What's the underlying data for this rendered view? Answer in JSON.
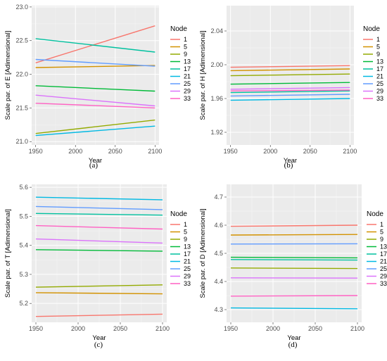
{
  "legend": {
    "title": "Node",
    "nodes": [
      "1",
      "5",
      "9",
      "13",
      "17",
      "21",
      "25",
      "29",
      "33"
    ],
    "colors": [
      "#F8766D",
      "#D39200",
      "#93AA00",
      "#00BA38",
      "#00C19F",
      "#00B9E3",
      "#619CFF",
      "#DB72FB",
      "#FF61C3"
    ]
  },
  "chart_data": [
    {
      "type": "line",
      "panel": "(a)",
      "caption": "(a)",
      "xlabel": "Year",
      "ylabel": "Scale par. of E [Adimensional]",
      "xlim": [
        1945,
        2105
      ],
      "ylim": [
        20.95,
        23.02
      ],
      "xticks": [
        1950,
        2000,
        2050,
        2100
      ],
      "yticks": [
        21.0,
        21.5,
        22.0,
        22.5,
        23.0
      ],
      "ytick_labels": [
        "21.0",
        "21.5",
        "22.0",
        "22.5",
        "23.0"
      ],
      "grid": true,
      "legend_position": "right",
      "x": [
        1950,
        2100
      ],
      "series": [
        {
          "name": "1",
          "values": [
            22.17,
            22.72
          ]
        },
        {
          "name": "5",
          "values": [
            22.1,
            22.13
          ]
        },
        {
          "name": "9",
          "values": [
            21.12,
            21.32
          ]
        },
        {
          "name": "13",
          "values": [
            21.83,
            21.75
          ]
        },
        {
          "name": "17",
          "values": [
            22.53,
            22.33
          ]
        },
        {
          "name": "21",
          "values": [
            21.09,
            21.23
          ]
        },
        {
          "name": "25",
          "values": [
            22.22,
            22.12
          ]
        },
        {
          "name": "29",
          "values": [
            21.69,
            21.53
          ]
        },
        {
          "name": "33",
          "values": [
            21.57,
            21.5
          ]
        }
      ]
    },
    {
      "type": "line",
      "panel": "(b)",
      "caption": "(b)",
      "xlabel": "Year",
      "ylabel": "Scale par. of H [Adimensional]",
      "xlim": [
        1945,
        2105
      ],
      "ylim": [
        1.905,
        2.07
      ],
      "xticks": [
        1950,
        2000,
        2050,
        2100
      ],
      "yticks": [
        1.92,
        1.96,
        2.0,
        2.04
      ],
      "ytick_labels": [
        "1.92",
        "1.96",
        "2.00",
        "2.04"
      ],
      "grid": true,
      "legend_position": "right",
      "x": [
        1950,
        2100
      ],
      "series": [
        {
          "name": "1",
          "values": [
            1.997,
            1.999
          ]
        },
        {
          "name": "5",
          "values": [
            1.993,
            1.995
          ]
        },
        {
          "name": "9",
          "values": [
            1.987,
            1.989
          ]
        },
        {
          "name": "13",
          "values": [
            1.977,
            1.979
          ]
        },
        {
          "name": "17",
          "values": [
            1.967,
            1.969
          ]
        },
        {
          "name": "21",
          "values": [
            1.958,
            1.96
          ]
        },
        {
          "name": "25",
          "values": [
            1.963,
            1.965
          ]
        },
        {
          "name": "29",
          "values": [
            1.971,
            1.973
          ]
        },
        {
          "name": "33",
          "values": [
            1.969,
            1.97
          ]
        }
      ]
    },
    {
      "type": "line",
      "panel": "(c)",
      "caption": "(c)",
      "xlabel": "Year",
      "ylabel": "Scale par. of T [Adimensional]",
      "xlim": [
        1945,
        2105
      ],
      "ylim": [
        5.135,
        5.61
      ],
      "xticks": [
        1950,
        2000,
        2050,
        2100
      ],
      "yticks": [
        5.2,
        5.3,
        5.4,
        5.5,
        5.6
      ],
      "ytick_labels": [
        "5.2",
        "5.3",
        "5.4",
        "5.5",
        "5.6"
      ],
      "grid": true,
      "legend_position": "right",
      "x": [
        1950,
        2100
      ],
      "series": [
        {
          "name": "1",
          "values": [
            5.155,
            5.163
          ]
        },
        {
          "name": "5",
          "values": [
            5.237,
            5.233
          ]
        },
        {
          "name": "9",
          "values": [
            5.256,
            5.264
          ]
        },
        {
          "name": "13",
          "values": [
            5.385,
            5.38
          ]
        },
        {
          "name": "17",
          "values": [
            5.51,
            5.504
          ]
        },
        {
          "name": "21",
          "values": [
            5.566,
            5.557
          ]
        },
        {
          "name": "25",
          "values": [
            5.534,
            5.523
          ]
        },
        {
          "name": "29",
          "values": [
            5.422,
            5.408
          ]
        },
        {
          "name": "33",
          "values": [
            5.468,
            5.456
          ]
        }
      ]
    },
    {
      "type": "line",
      "panel": "(d)",
      "caption": "(d)",
      "xlabel": "Year",
      "ylabel": "Scale par. of D [Adimensional]",
      "xlim": [
        1945,
        2105
      ],
      "ylim": [
        4.255,
        4.745
      ],
      "xticks": [
        1950,
        2000,
        2050,
        2100
      ],
      "yticks": [
        4.3,
        4.4,
        4.5,
        4.6,
        4.7
      ],
      "ytick_labels": [
        "4.3",
        "4.4",
        "4.5",
        "4.6",
        "4.7"
      ],
      "grid": true,
      "legend_position": "right",
      "x": [
        1950,
        2100
      ],
      "series": [
        {
          "name": "1",
          "values": [
            4.596,
            4.6
          ]
        },
        {
          "name": "5",
          "values": [
            4.565,
            4.567
          ]
        },
        {
          "name": "9",
          "values": [
            4.448,
            4.446
          ]
        },
        {
          "name": "13",
          "values": [
            4.486,
            4.484
          ]
        },
        {
          "name": "17",
          "values": [
            4.478,
            4.476
          ]
        },
        {
          "name": "21",
          "values": [
            4.306,
            4.303
          ]
        },
        {
          "name": "25",
          "values": [
            4.533,
            4.534
          ]
        },
        {
          "name": "29",
          "values": [
            4.413,
            4.412
          ]
        },
        {
          "name": "33",
          "values": [
            4.348,
            4.35
          ]
        }
      ]
    }
  ]
}
